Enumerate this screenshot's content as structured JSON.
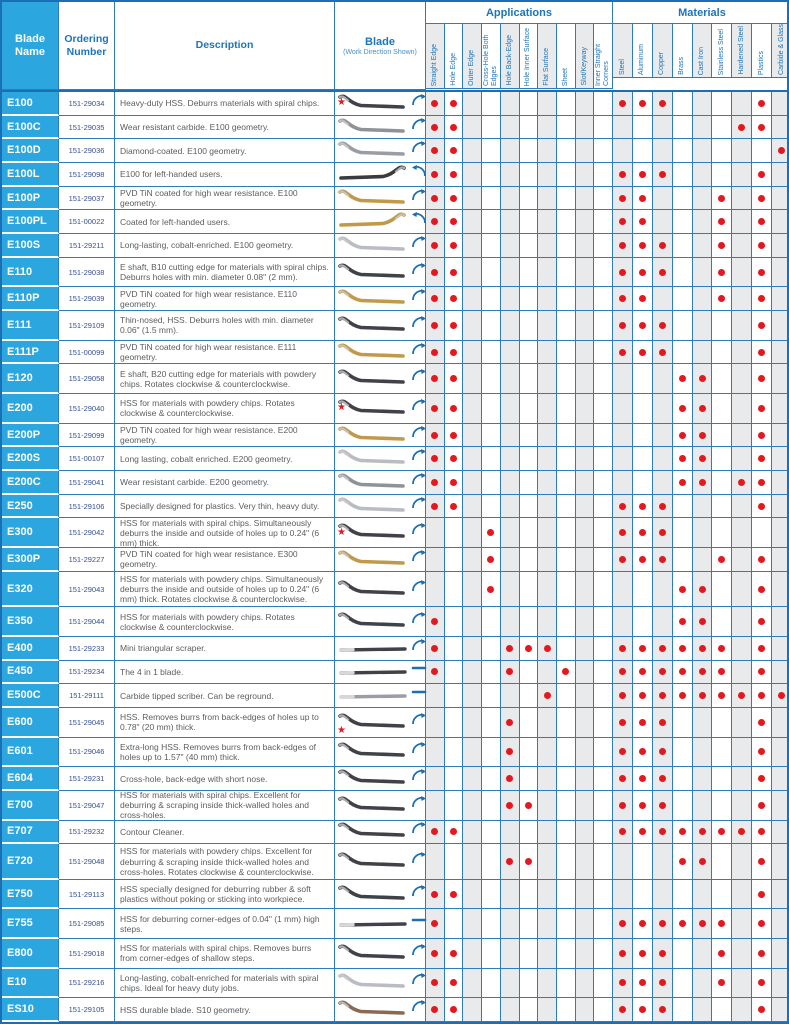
{
  "table": {
    "columns": {
      "blade_name": "Blade Name",
      "ordering_number": "Ordering Number",
      "description": "Description",
      "blade": "Blade",
      "blade_sub": "(Work Direction Shown)",
      "applications_group": "Applications",
      "materials_group": "Materials"
    },
    "application_columns": [
      "Straight Edge",
      "Hole Edge",
      "Outer Edge",
      "Cross-Hole Both Edges",
      "Hole Back-Edge",
      "Hole Inner Surface",
      "Flat Surface",
      "Sheet",
      "Slot/Keyway",
      "Inner Straight Corners"
    ],
    "material_columns": [
      "Steel",
      "Aluminum",
      "Copper",
      "Brass",
      "Cast Iron",
      "Stainless Steel",
      "Hardened Steel",
      "Plastics",
      "Carbide & Glass"
    ],
    "colors": {
      "accent_cyan": "#2ba6df",
      "border_blue": "#2e7cb9",
      "header_text_blue": "#1b75bc",
      "dot_red": "#e4181f",
      "column_shade": "#e9eaeb"
    },
    "icons": {
      "recommended": "star-icon",
      "rotation": "work-direction-arc-icon",
      "linear": "work-direction-dash-icon"
    },
    "rows": [
      {
        "name": "E100",
        "order": "151-29034",
        "description": "Heavy-duty HSS. Deburrs materials with spiral chips.",
        "lines": 1,
        "star": true,
        "star_low": false,
        "blade_shape": "s",
        "blade_color": "#404247",
        "mirror": false,
        "indicator": "arc",
        "apps": [
          0,
          1
        ],
        "mats": [
          0,
          1,
          2,
          7
        ]
      },
      {
        "name": "E100C",
        "order": "151-29035",
        "description": "Wear resistant carbide. E100 geometry.",
        "lines": 1,
        "star": false,
        "star_low": false,
        "blade_shape": "s",
        "blade_color": "#8f9296",
        "mirror": false,
        "indicator": "arc",
        "apps": [
          0,
          1
        ],
        "mats": [
          6,
          7
        ]
      },
      {
        "name": "E100D",
        "order": "151-29036",
        "description": "Diamond-coated. E100 geometry.",
        "lines": 1,
        "star": false,
        "star_low": false,
        "blade_shape": "s",
        "blade_color": "#9a9da1",
        "mirror": false,
        "indicator": "arc",
        "apps": [
          0,
          1
        ],
        "mats": [
          8
        ]
      },
      {
        "name": "E100L",
        "order": "151-29098",
        "description": "E100 for left-handed users.",
        "lines": 1,
        "star": false,
        "star_low": false,
        "blade_shape": "s",
        "blade_color": "#3a3b3e",
        "mirror": true,
        "indicator": "arc-left",
        "apps": [
          0,
          1
        ],
        "mats": [
          0,
          1,
          2,
          7
        ]
      },
      {
        "name": "E100P",
        "order": "151-29037",
        "description": "PVD TiN coated for high wear resistance. E100 geometry.",
        "lines": 1,
        "star": false,
        "star_low": false,
        "blade_shape": "s",
        "blade_color": "#c09a4a",
        "mirror": false,
        "indicator": "arc",
        "apps": [
          0,
          1
        ],
        "mats": [
          0,
          1,
          5,
          7
        ]
      },
      {
        "name": "E100PL",
        "order": "151-00022",
        "description": "Coated for left-handed users.",
        "lines": 1,
        "star": false,
        "star_low": false,
        "blade_shape": "s",
        "blade_color": "#c09a4a",
        "mirror": true,
        "indicator": "arc-left",
        "apps": [
          0,
          1
        ],
        "mats": [
          0,
          1,
          5,
          7
        ]
      },
      {
        "name": "E100S",
        "order": "151-29211",
        "description": "Long-lasting, cobalt-enriched. E100 geometry.",
        "lines": 1,
        "star": false,
        "star_low": false,
        "blade_shape": "s",
        "blade_color": "#b9bcc0",
        "mirror": false,
        "indicator": "arc",
        "apps": [
          0,
          1
        ],
        "mats": [
          0,
          1,
          2,
          5,
          7
        ]
      },
      {
        "name": "E110",
        "order": "151-29038",
        "description": "E shaft, B10 cutting edge for materials with spiral chips. Deburrs holes with min. diameter 0.08\" (2 mm).",
        "lines": 2,
        "star": false,
        "star_low": false,
        "blade_shape": "s",
        "blade_color": "#404247",
        "mirror": false,
        "indicator": "arc",
        "apps": [
          0,
          1
        ],
        "mats": [
          0,
          1,
          2,
          5,
          7
        ]
      },
      {
        "name": "E110P",
        "order": "151-29039",
        "description": "PVD TiN coated for high wear resistance. E110 geometry.",
        "lines": 1,
        "star": false,
        "star_low": false,
        "blade_shape": "s",
        "blade_color": "#c09a4a",
        "mirror": false,
        "indicator": "arc",
        "apps": [
          0,
          1
        ],
        "mats": [
          0,
          1,
          5,
          7
        ]
      },
      {
        "name": "E111",
        "order": "151-29109",
        "description": "Thin-nosed, HSS. Deburrs holes with min. diameter 0.06\" (1.5 mm).",
        "lines": 2,
        "star": false,
        "star_low": false,
        "blade_shape": "s",
        "blade_color": "#404247",
        "mirror": false,
        "indicator": "arc",
        "apps": [
          0,
          1
        ],
        "mats": [
          0,
          1,
          2,
          7
        ]
      },
      {
        "name": "E111P",
        "order": "151-00099",
        "description": "PVD TiN coated for high wear resistance. E111 geometry.",
        "lines": 1,
        "star": false,
        "star_low": false,
        "blade_shape": "s",
        "blade_color": "#c09a4a",
        "mirror": false,
        "indicator": "arc",
        "apps": [
          0,
          1
        ],
        "mats": [
          0,
          1,
          2,
          7
        ]
      },
      {
        "name": "E120",
        "order": "151-29058",
        "description": "E shaft, B20 cutting edge for materials with powdery chips. Rotates clockwise & counterclockwise.",
        "lines": 2,
        "star": false,
        "star_low": false,
        "blade_shape": "s",
        "blade_color": "#404247",
        "mirror": false,
        "indicator": "arc",
        "apps": [
          0,
          1
        ],
        "mats": [
          3,
          4,
          7
        ]
      },
      {
        "name": "E200",
        "order": "151-29040",
        "description": "HSS for materials with powdery chips. Rotates clockwise & counterclockwise.",
        "lines": 2,
        "star": true,
        "star_low": false,
        "blade_shape": "s",
        "blade_color": "#404247",
        "mirror": false,
        "indicator": "arc",
        "apps": [
          0,
          1
        ],
        "mats": [
          3,
          4,
          7
        ]
      },
      {
        "name": "E200P",
        "order": "151-29099",
        "description": "PVD TiN coated for high wear resistance. E200 geometry.",
        "lines": 1,
        "star": false,
        "star_low": false,
        "blade_shape": "s",
        "blade_color": "#c09a4a",
        "mirror": false,
        "indicator": "arc",
        "apps": [
          0,
          1
        ],
        "mats": [
          3,
          4,
          7
        ]
      },
      {
        "name": "E200S",
        "order": "151-00107",
        "description": "Long lasting, cobalt enriched. E200 geometry.",
        "lines": 1,
        "star": false,
        "star_low": false,
        "blade_shape": "s",
        "blade_color": "#b9bcc0",
        "mirror": false,
        "indicator": "arc",
        "apps": [
          0,
          1
        ],
        "mats": [
          3,
          4,
          7
        ]
      },
      {
        "name": "E200C",
        "order": "151-29041",
        "description": "Wear resistant carbide. E200 geometry.",
        "lines": 1,
        "star": false,
        "star_low": false,
        "blade_shape": "s",
        "blade_color": "#8f9296",
        "mirror": false,
        "indicator": "arc",
        "apps": [
          0,
          1
        ],
        "mats": [
          3,
          4,
          6,
          7
        ]
      },
      {
        "name": "E250",
        "order": "151-29106",
        "description": "Specially designed for plastics. Very thin, heavy duty.",
        "lines": 1,
        "star": false,
        "star_low": false,
        "blade_shape": "s",
        "blade_color": "#b9bcc0",
        "mirror": false,
        "indicator": "arc",
        "apps": [
          0,
          1
        ],
        "mats": [
          0,
          1,
          2,
          7
        ]
      },
      {
        "name": "E300",
        "order": "151-29042",
        "description": "HSS for materials with spiral chips. Simultaneously deburrs the inside and outside of holes up to 0.24\" (6 mm) thick.",
        "lines": 2,
        "star": true,
        "star_low": false,
        "blade_shape": "s",
        "blade_color": "#404247",
        "mirror": false,
        "indicator": "arc",
        "apps": [
          3
        ],
        "mats": [
          0,
          1,
          2
        ]
      },
      {
        "name": "E300P",
        "order": "151-29227",
        "description": "PVD TiN coated for high wear resistance. E300 geometry.",
        "lines": 1,
        "star": false,
        "star_low": false,
        "blade_shape": "s",
        "blade_color": "#c09a4a",
        "mirror": false,
        "indicator": "arc",
        "apps": [
          3
        ],
        "mats": [
          0,
          1,
          2,
          5,
          7
        ]
      },
      {
        "name": "E320",
        "order": "151-29043",
        "description": "HSS for materials with powdery chips. Simultaneously deburrs the inside and outside of holes up to 0.24\" (6 mm) thick. Rotates clockwise & counterclockwise.",
        "lines": 3,
        "star": false,
        "star_low": false,
        "blade_shape": "s",
        "blade_color": "#404247",
        "mirror": false,
        "indicator": "arc",
        "apps": [
          3
        ],
        "mats": [
          3,
          4,
          7
        ]
      },
      {
        "name": "E350",
        "order": "151-29044",
        "description": "HSS for materials with powdery chips. Rotates clockwise & counterclockwise.",
        "lines": 2,
        "star": false,
        "star_low": false,
        "blade_shape": "s",
        "blade_color": "#404247",
        "mirror": false,
        "indicator": "arc",
        "apps": [
          0
        ],
        "mats": [
          3,
          4,
          7
        ]
      },
      {
        "name": "E400",
        "order": "151-29233",
        "description": "Mini triangular scraper.",
        "lines": 1,
        "star": false,
        "star_low": false,
        "blade_shape": "flat",
        "blade_color": "#404247",
        "mirror": false,
        "indicator": "arc",
        "apps": [
          0,
          4,
          5,
          6
        ],
        "mats": [
          0,
          1,
          2,
          3,
          4,
          5,
          7
        ]
      },
      {
        "name": "E450",
        "order": "151-29234",
        "description": "The 4 in 1 blade.",
        "lines": 1,
        "star": false,
        "star_low": false,
        "blade_shape": "flat",
        "blade_color": "#404247",
        "mirror": false,
        "indicator": "dash",
        "apps": [
          0,
          4,
          7
        ],
        "mats": [
          0,
          1,
          2,
          3,
          4,
          5,
          7
        ]
      },
      {
        "name": "E500C",
        "order": "151-29111",
        "description": "Carbide tipped scriber. Can be reground.",
        "lines": 1,
        "star": false,
        "star_low": false,
        "blade_shape": "flat",
        "blade_color": "#9a9da1",
        "mirror": false,
        "indicator": "dash",
        "apps": [
          6
        ],
        "mats": [
          0,
          1,
          2,
          3,
          4,
          5,
          6,
          7,
          8
        ]
      },
      {
        "name": "E600",
        "order": "151-29045",
        "description": "HSS. Removes burrs from back-edges of holes up to 0.78\" (20 mm) thick.",
        "lines": 2,
        "star": true,
        "star_low": true,
        "blade_shape": "s",
        "blade_color": "#404247",
        "mirror": false,
        "indicator": "arc",
        "apps": [
          4
        ],
        "mats": [
          0,
          1,
          2,
          7
        ]
      },
      {
        "name": "E601",
        "order": "151-29046",
        "description": "Extra-long HSS. Removes burrs from back-edges of holes up to 1.57\" (40 mm) thick.",
        "lines": 2,
        "star": false,
        "star_low": false,
        "blade_shape": "s",
        "blade_color": "#404247",
        "mirror": false,
        "indicator": "arc",
        "apps": [
          4
        ],
        "mats": [
          0,
          1,
          2,
          7
        ]
      },
      {
        "name": "E604",
        "order": "151-29231",
        "description": "Cross-hole, back-edge with short nose.",
        "lines": 1,
        "star": false,
        "star_low": false,
        "blade_shape": "s",
        "blade_color": "#404247",
        "mirror": false,
        "indicator": "arc",
        "apps": [
          4
        ],
        "mats": [
          0,
          1,
          2,
          7
        ]
      },
      {
        "name": "E700",
        "order": "151-29047",
        "description": "HSS for materials with spiral chips. Excellent for deburring & scraping inside thick-walled holes and cross-holes.",
        "lines": 2,
        "star": false,
        "star_low": false,
        "blade_shape": "s",
        "blade_color": "#404247",
        "mirror": false,
        "indicator": "arc",
        "apps": [
          4,
          5
        ],
        "mats": [
          0,
          1,
          2,
          7
        ]
      },
      {
        "name": "E707",
        "order": "151-29232",
        "description": "Contour Cleaner.",
        "lines": 1,
        "star": false,
        "star_low": false,
        "blade_shape": "s",
        "blade_color": "#404247",
        "mirror": false,
        "indicator": "arc",
        "apps": [
          0,
          1
        ],
        "mats": [
          0,
          1,
          2,
          3,
          4,
          5,
          6,
          7
        ]
      },
      {
        "name": "E720",
        "order": "151-29048",
        "description": "HSS for materials with powdery chips. Excellent for deburring & scraping inside thick-walled holes and cross-holes. Rotates clockwise & counterclockwise.",
        "lines": 3,
        "star": false,
        "star_low": false,
        "blade_shape": "s",
        "blade_color": "#404247",
        "mirror": false,
        "indicator": "arc",
        "apps": [
          4,
          5
        ],
        "mats": [
          3,
          4,
          7
        ]
      },
      {
        "name": "E750",
        "order": "151-29113",
        "description": "HSS specially designed for deburring rubber & soft plastics without poking or sticking into workpiece.",
        "lines": 2,
        "star": false,
        "star_low": false,
        "blade_shape": "s",
        "blade_color": "#404247",
        "mirror": false,
        "indicator": "arc",
        "apps": [
          0,
          1
        ],
        "mats": [
          7
        ]
      },
      {
        "name": "E755",
        "order": "151-29085",
        "description": "HSS for deburring corner-edges of 0.04\" (1 mm) high steps.",
        "lines": 2,
        "star": false,
        "star_low": false,
        "blade_shape": "flat",
        "blade_color": "#404247",
        "mirror": false,
        "indicator": "dash",
        "apps": [
          0
        ],
        "mats": [
          0,
          1,
          2,
          3,
          4,
          5,
          7
        ]
      },
      {
        "name": "E800",
        "order": "151-29018",
        "description": "HSS for materials with spiral chips. Removes burrs from corner-edges of shallow steps.",
        "lines": 2,
        "star": false,
        "star_low": false,
        "blade_shape": "s",
        "blade_color": "#404247",
        "mirror": false,
        "indicator": "arc",
        "apps": [
          0,
          1
        ],
        "mats": [
          0,
          1,
          2,
          5,
          7
        ]
      },
      {
        "name": "E10",
        "order": "151-29216",
        "description": "Long-lasting, cobalt-enriched for materials with spiral chips. Ideal for heavy duty jobs.",
        "lines": 2,
        "star": false,
        "star_low": false,
        "blade_shape": "s",
        "blade_color": "#b9bcc0",
        "mirror": false,
        "indicator": "arc",
        "apps": [
          0,
          1
        ],
        "mats": [
          0,
          1,
          2,
          5,
          7
        ]
      },
      {
        "name": "ES10",
        "order": "151-29105",
        "description": "HSS durable blade. S10 geometry.",
        "lines": 1,
        "star": false,
        "star_low": false,
        "blade_shape": "s",
        "blade_color": "#8a6a52",
        "mirror": false,
        "indicator": "arc",
        "apps": [
          0,
          1
        ],
        "mats": [
          0,
          1,
          2,
          7
        ]
      }
    ]
  }
}
